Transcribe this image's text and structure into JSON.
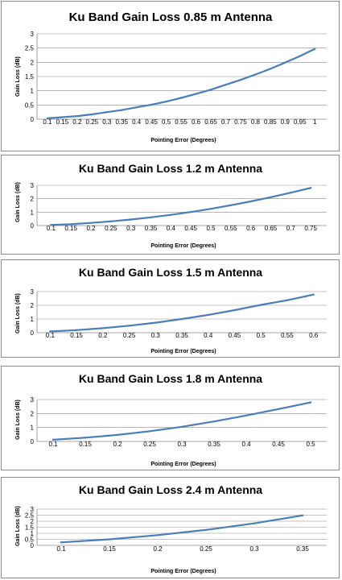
{
  "colors": {
    "series": "#4a7ebb",
    "grid": "#8a8a8a",
    "border": "#8c8c8c"
  },
  "chart_data": [
    {
      "type": "line",
      "title": "Ku Band Gain Loss 0.85 m Antenna",
      "xlabel": "Pointing Error (Degrees)",
      "ylabel": "Gain Loss (dB)",
      "ylim": [
        0,
        3
      ],
      "yticks": [
        "0",
        "0.5",
        "1",
        "1.5",
        "2",
        "2.5",
        "3"
      ],
      "categories": [
        "0.1",
        "0.15",
        "0.2",
        "0.25",
        "0.3",
        "0.35",
        "0.4",
        "0.45",
        "0.5",
        "0.55",
        "0.6",
        "0.65",
        "0.7",
        "0.75",
        "0.8",
        "0.85",
        "0.9",
        "0.95",
        "1"
      ],
      "values": [
        0.03,
        0.07,
        0.11,
        0.17,
        0.25,
        0.32,
        0.42,
        0.51,
        0.62,
        0.75,
        0.89,
        1.04,
        1.21,
        1.38,
        1.57,
        1.77,
        1.99,
        2.22,
        2.47
      ],
      "grid": true,
      "legend": "none"
    },
    {
      "type": "line",
      "title": "Ku Band Gain Loss 1.2 m Antenna",
      "xlabel": "Pointing Error (Degrees)",
      "ylabel": "Gain  Loss  (dB)",
      "ylim": [
        0,
        3
      ],
      "yticks": [
        "0",
        "1",
        "2",
        "3"
      ],
      "categories": [
        "0.1",
        "0.15",
        "0.2",
        "0.25",
        "0.3",
        "0.35",
        "0.4",
        "0.45",
        "0.5",
        "0.55",
        "0.6",
        "0.65",
        "0.7",
        "0.75"
      ],
      "values": [
        0.05,
        0.1,
        0.2,
        0.31,
        0.45,
        0.61,
        0.8,
        1.01,
        1.25,
        1.51,
        1.8,
        2.11,
        2.45,
        2.8
      ],
      "grid": true,
      "legend": "none"
    },
    {
      "type": "line",
      "title": "Ku Band Gain Loss 1.5 m Antenna",
      "xlabel": "Pointing Error (Degrees)",
      "ylabel": "Gain  Loss  (dB)",
      "ylim": [
        0,
        3
      ],
      "yticks": [
        "0",
        "1",
        "2",
        "3"
      ],
      "categories": [
        "0.1",
        "0.15",
        "0.2",
        "0.25",
        "0.3",
        "0.35",
        "0.4",
        "0.45",
        "0.5",
        "0.55",
        "0.6"
      ],
      "values": [
        0.09,
        0.19,
        0.33,
        0.51,
        0.73,
        1.0,
        1.3,
        1.65,
        2.03,
        2.37,
        2.78
      ],
      "grid": true,
      "legend": "none"
    },
    {
      "type": "line",
      "title": "Ku Band Gain Loss 1.8 m Antenna",
      "xlabel": "Pointing  Error  (Degrees)",
      "ylabel": "Gain  Loss  (dB)",
      "ylim": [
        0,
        3
      ],
      "yticks": [
        "0",
        "1",
        "2",
        "3"
      ],
      "categories": [
        "0.1",
        "0.15",
        "0.2",
        "0.25",
        "0.3",
        "0.35",
        "0.4",
        "0.45",
        "0.5"
      ],
      "values": [
        0.12,
        0.27,
        0.47,
        0.73,
        1.05,
        1.43,
        1.86,
        2.32,
        2.8
      ],
      "grid": true,
      "legend": "none"
    },
    {
      "type": "line",
      "title": "Ku Band Gain Loss 2.4 m Antenna",
      "xlabel": "Pointing Error  (Degrees)",
      "ylabel": "Gain  Loss  (dB)",
      "ylim": [
        0,
        3
      ],
      "yticks": [
        "0",
        "0.5",
        "1",
        "1.5",
        "2",
        "2.5",
        "3"
      ],
      "categories": [
        "0.1",
        "0.15",
        "0.2",
        "0.25",
        "0.3",
        "0.35"
      ],
      "values": [
        0.25,
        0.5,
        0.85,
        1.28,
        1.82,
        2.48
      ],
      "grid": true,
      "legend": "none"
    }
  ]
}
